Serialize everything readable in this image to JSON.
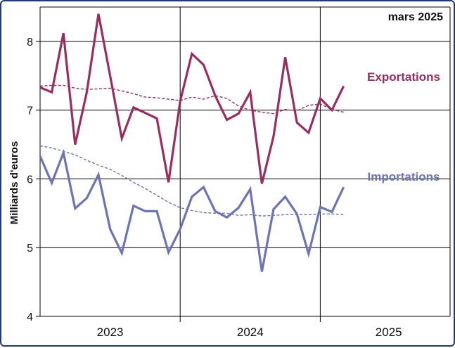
{
  "chart_data": {
    "type": "line",
    "subtitle": "mars 2025",
    "ylabel": "Milliards d'euros",
    "ylim": [
      4,
      8.5
    ],
    "yticks": [
      4,
      5,
      6,
      7,
      8
    ],
    "x_groups": [
      "2023",
      "2024",
      "2025"
    ],
    "grid": true,
    "x": [
      "2023-01",
      "2023-02",
      "2023-03",
      "2023-04",
      "2023-05",
      "2023-06",
      "2023-07",
      "2023-08",
      "2023-09",
      "2023-10",
      "2023-11",
      "2023-12",
      "2024-01",
      "2024-02",
      "2024-03",
      "2024-04",
      "2024-05",
      "2024-06",
      "2024-07",
      "2024-08",
      "2024-09",
      "2024-10",
      "2024-11",
      "2024-12",
      "2025-01",
      "2025-02",
      "2025-03"
    ],
    "series": [
      {
        "name": "Exportations",
        "color": "#9b2d5e",
        "values": [
          7.33,
          7.26,
          8.12,
          6.5,
          7.26,
          8.4,
          7.5,
          6.59,
          7.04,
          6.96,
          6.88,
          5.95,
          7.13,
          7.82,
          7.66,
          7.21,
          6.86,
          6.95,
          7.26,
          5.93,
          6.62,
          7.77,
          6.82,
          6.67,
          7.17,
          7.0,
          7.35
        ],
        "trend": [
          7.35,
          7.36,
          7.36,
          7.32,
          7.3,
          7.31,
          7.32,
          7.28,
          7.24,
          7.19,
          7.18,
          7.16,
          7.14,
          7.19,
          7.16,
          7.21,
          7.17,
          7.06,
          7.0,
          6.97,
          6.95,
          7.01,
          6.99,
          7.07,
          7.09,
          7.01,
          6.97
        ]
      },
      {
        "name": "Importations",
        "color": "#6b74b8",
        "values": [
          6.33,
          5.94,
          6.38,
          5.57,
          5.72,
          6.06,
          5.27,
          4.92,
          5.61,
          5.53,
          5.53,
          4.93,
          5.27,
          5.74,
          5.88,
          5.53,
          5.44,
          5.58,
          5.85,
          4.65,
          5.56,
          5.74,
          5.49,
          4.91,
          5.59,
          5.52,
          5.88
        ],
        "trend": [
          6.48,
          6.45,
          6.4,
          6.35,
          6.27,
          6.2,
          6.14,
          6.05,
          5.95,
          5.86,
          5.76,
          5.66,
          5.58,
          5.54,
          5.51,
          5.5,
          5.5,
          5.47,
          5.48,
          5.46,
          5.47,
          5.48,
          5.48,
          5.48,
          5.49,
          5.49,
          5.48
        ]
      }
    ]
  }
}
